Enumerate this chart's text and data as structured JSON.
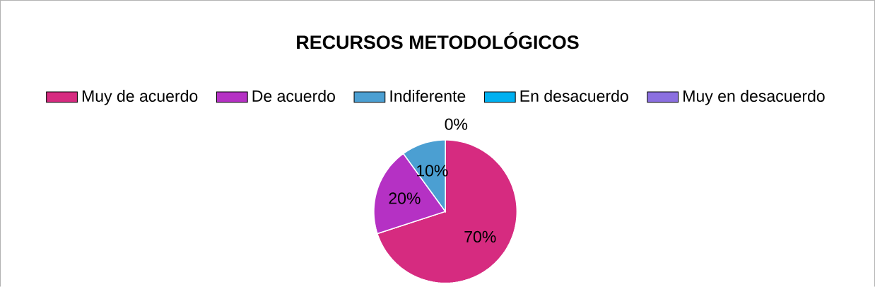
{
  "chart_data": {
    "type": "pie",
    "title": "RECURSOS METODOLÓGICOS",
    "categories": [
      "Muy de acuerdo",
      "De acuerdo",
      "Indiferente",
      "En desacuerdo",
      "Muy en desacuerdo"
    ],
    "values": [
      70,
      20,
      10,
      0,
      0
    ],
    "colors": [
      "#d62b80",
      "#b531c4",
      "#4b9fd2",
      "#00b0f0",
      "#8b6fe0"
    ],
    "value_labels": [
      "70%",
      "20%",
      "10%",
      "0%",
      null
    ],
    "legend": "top"
  }
}
